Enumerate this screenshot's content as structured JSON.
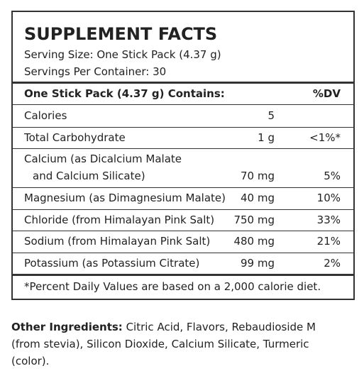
{
  "panel": {
    "title": "SUPPLEMENT FACTS",
    "serving_size": "Serving Size: One Stick Pack (4.37 g)",
    "servings_per_container": "Servings Per Container: 30",
    "header": {
      "label": "One Stick Pack (4.37 g) Contains:",
      "dv": "%DV"
    },
    "rows": [
      {
        "name": [
          "Calories"
        ],
        "amount": "5"
      },
      {
        "name": [
          "Total Carbohydrate"
        ],
        "amount": "1 g",
        "dv": "<1%*"
      },
      {
        "name": [
          "Calcium (as Dicalcium Malate",
          "and Calcium Silicate)"
        ],
        "amount": "70 mg",
        "dv": "5%"
      },
      {
        "name": [
          "Magnesium (as Dimagnesium Malate)"
        ],
        "amount": "40 mg",
        "dv": "10%"
      },
      {
        "name": [
          "Chloride (from Himalayan Pink Salt)"
        ],
        "amount": "750 mg",
        "dv": "33%"
      },
      {
        "name": [
          "Sodium (from Himalayan Pink Salt)"
        ],
        "amount": "480 mg",
        "dv": "21%"
      },
      {
        "name": [
          "Potassium (as Potassium Citrate)"
        ],
        "amount": "99 mg",
        "dv": "2%"
      }
    ],
    "footnote": "*Percent Daily Values are based on a 2,000 calorie diet."
  },
  "other_ingredients": {
    "label": "Other Ingredients:",
    "text": "Citric Acid, Flavors, Rebaudioside M (from stevia), Silicon Dioxide, Calcium Silicate, Turmeric (color)."
  }
}
